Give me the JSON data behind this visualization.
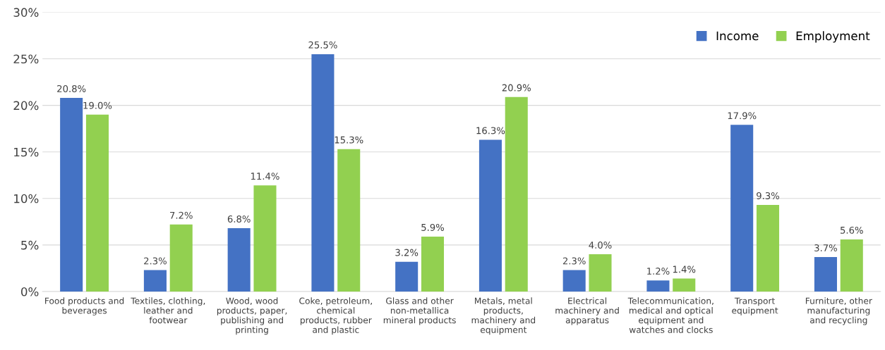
{
  "chart_data": {
    "type": "bar",
    "categories": [
      "Food products and\nbeverages",
      "Textiles, clothing,\nleather and\nfootwear",
      "Wood, wood\nproducts, paper,\npublishing and\nprinting",
      "Coke, petroleum,\nchemical\nproducts, rubber\nand plastic",
      "Glass and other\nnon-metallica\nmineral products",
      "Metals, metal\nproducts,\nmachinery and\nequipment",
      "Electrical\nmachinery and\napparatus",
      "Telecommunication,\nmedical and optical\nequipment and\nwatches and clocks",
      "Transport\nequipment",
      "Furniture, other\nmanufacturing\nand recycling"
    ],
    "series": [
      {
        "name": "Income",
        "color": "#4472c4",
        "values": [
          20.8,
          2.3,
          6.8,
          25.5,
          3.2,
          16.3,
          2.3,
          1.2,
          17.9,
          3.7
        ],
        "value_labels": [
          "20.8%",
          "2.3%",
          "6.8%",
          "25.5%",
          "3.2%",
          "16.3%",
          "2.3%",
          "1.2%",
          "17.9%",
          "3.7%"
        ]
      },
      {
        "name": "Employment",
        "color": "#92d050",
        "values": [
          19.0,
          7.2,
          11.4,
          15.3,
          5.9,
          20.9,
          4.0,
          1.4,
          9.3,
          5.6
        ],
        "value_labels": [
          "19.0%",
          "7.2%",
          "11.4%",
          "15.3%",
          "5.9%",
          "20.9%",
          "4.0%",
          "1.4%",
          "9.3%",
          "5.6%"
        ]
      }
    ],
    "ylim": [
      0,
      30
    ],
    "yticks": [
      {
        "value": 0,
        "label": "0%"
      },
      {
        "value": 5,
        "label": "5%"
      },
      {
        "value": 10,
        "label": "10%"
      },
      {
        "value": 15,
        "label": "15%"
      },
      {
        "value": 20,
        "label": "20%"
      },
      {
        "value": 25,
        "label": "25%"
      },
      {
        "value": 30,
        "label": "30%"
      }
    ],
    "grid": "y",
    "legend": "top right"
  }
}
